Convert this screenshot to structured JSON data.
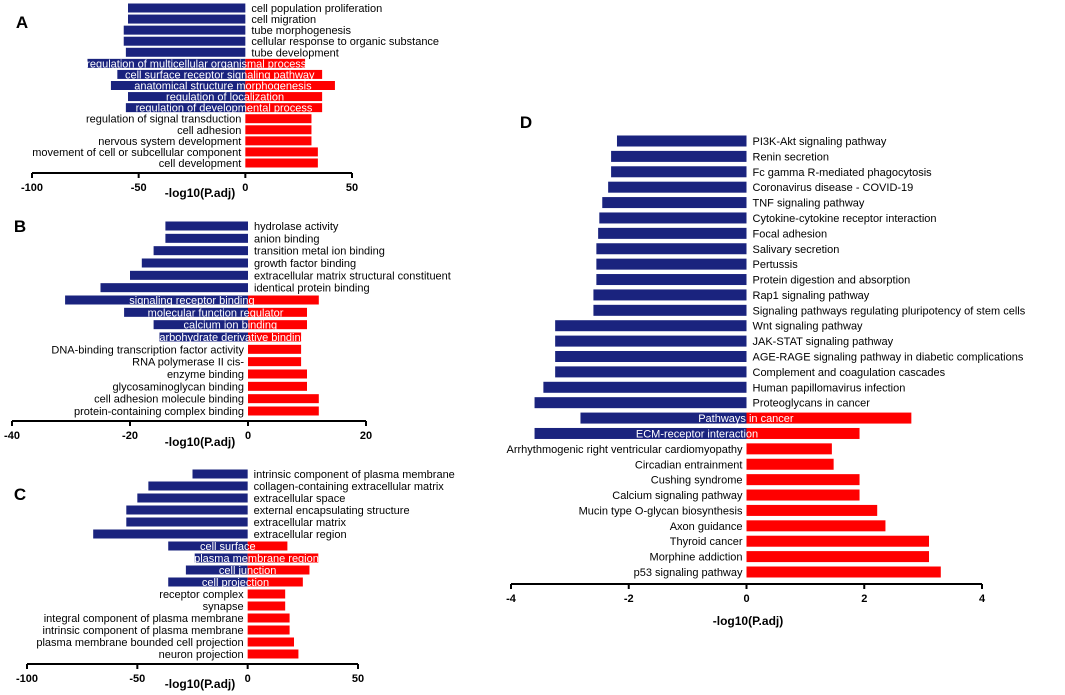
{
  "colors": {
    "negative": "#1a237e",
    "positive": "#ff0000"
  },
  "chart_data": [
    {
      "panel": "A",
      "type": "bar",
      "orientation": "horizontal",
      "xlabel": "-log10(P.adj)",
      "xlim": [
        -100,
        50
      ],
      "xticks": [
        -100,
        -50,
        0,
        50
      ],
      "categories": [
        "cell population proliferation",
        "cell migration",
        "tube morphogenesis",
        "cellular response to organic substance",
        "tube development",
        "regulation of multicellular organismal process",
        "cell surface receptor signaling pathway",
        "anatomical structure morphogenesis",
        "regulation of localization",
        "regulation of developmental process",
        "regulation of signal transduction",
        "cell adhesion",
        "nervous system development",
        "movement of cell or subcellular component",
        "cell development"
      ],
      "series": [
        {
          "name": "down",
          "values": [
            -55,
            -55,
            -57,
            -57,
            -56,
            -74,
            -60,
            -63,
            -55,
            -56,
            0,
            0,
            0,
            0,
            0
          ]
        },
        {
          "name": "up",
          "values": [
            0,
            0,
            0,
            0,
            0,
            28,
            36,
            42,
            36,
            36,
            31,
            31,
            31,
            34,
            34
          ]
        }
      ]
    },
    {
      "panel": "B",
      "type": "bar",
      "orientation": "horizontal",
      "xlabel": "-log10(P.adj)",
      "xlim": [
        -40,
        20
      ],
      "xticks": [
        -40,
        -20,
        0,
        20
      ],
      "categories": [
        "hydrolase activity",
        "anion binding",
        "transition metal ion binding",
        "growth factor binding",
        "extracellular matrix structural constituent",
        "identical protein binding",
        "signaling receptor binding",
        "molecular function regulator",
        "calcium ion binding",
        "carbohydrate derivative binding",
        "DNA-binding transcription factor activity",
        "RNA polymerase II cis-",
        "enzyme binding",
        "glycosaminoglycan binding",
        "cell adhesion molecule binding",
        "protein-containing complex binding"
      ],
      "series": [
        {
          "name": "down",
          "values": [
            -14,
            -14,
            -16,
            -18,
            -20,
            -25,
            -31,
            -21,
            -16,
            -15,
            0,
            0,
            0,
            0,
            0,
            0
          ]
        },
        {
          "name": "up",
          "values": [
            0,
            0,
            0,
            0,
            0,
            0,
            12,
            10,
            10,
            9,
            9,
            9,
            10,
            10,
            12,
            12
          ]
        }
      ]
    },
    {
      "panel": "C",
      "type": "bar",
      "orientation": "horizontal",
      "xlabel": "-log10(P.adj)",
      "xlim": [
        -100,
        50
      ],
      "xticks": [
        -100,
        -50,
        0,
        50
      ],
      "categories": [
        "intrinsic component of plasma membrane",
        "collagen-containing extracellular matrix",
        "extracellular space",
        "external encapsulating structure",
        "extracellular matrix",
        "extracellular region",
        "cell surface",
        "plasma membrane region",
        "cell junction",
        "cell projection",
        "receptor complex",
        "synapse",
        "integral component of plasma membrane",
        "intrinsic component of plasma membrane",
        "plasma membrane bounded cell projection",
        "neuron projection"
      ],
      "series": [
        {
          "name": "down",
          "values": [
            -25,
            -45,
            -50,
            -55,
            -55,
            -70,
            -36,
            -24,
            -28,
            -36,
            0,
            0,
            0,
            0,
            0,
            0
          ]
        },
        {
          "name": "up",
          "values": [
            0,
            0,
            0,
            0,
            0,
            0,
            18,
            32,
            28,
            25,
            17,
            17,
            19,
            19,
            21,
            23
          ]
        }
      ]
    },
    {
      "panel": "D",
      "type": "bar",
      "orientation": "horizontal",
      "xlabel": "-log10(P.adj)",
      "xlim": [
        -4,
        4
      ],
      "xticks": [
        -4,
        -2,
        0,
        2,
        4
      ],
      "categories": [
        "PI3K-Akt signaling pathway",
        "Renin secretion",
        "Fc gamma R-mediated phagocytosis",
        "Coronavirus disease - COVID-19",
        "TNF signaling pathway",
        "Cytokine-cytokine receptor interaction",
        "Focal adhesion",
        "Salivary secretion",
        "Pertussis",
        "Protein digestion and absorption",
        "Rap1 signaling pathway",
        "Signaling pathways regulating pluripotency of stem cells",
        "Wnt signaling pathway",
        "JAK-STAT signaling pathway",
        "AGE-RAGE signaling pathway in diabetic complications",
        "Complement and coagulation cascades",
        "Human papillomavirus infection",
        "Proteoglycans in cancer",
        "Pathways in cancer",
        "ECM-receptor interaction",
        "Arrhythmogenic right ventricular cardiomyopathy",
        "Circadian entrainment",
        "Cushing syndrome",
        "Calcium signaling pathway",
        "Mucin type O-glycan biosynthesis",
        "Axon guidance",
        "Thyroid cancer",
        "Morphine addiction",
        "p53 signaling pathway"
      ],
      "series": [
        {
          "name": "down",
          "values": [
            -2.2,
            -2.3,
            -2.3,
            -2.35,
            -2.45,
            -2.5,
            -2.52,
            -2.55,
            -2.55,
            -2.55,
            -2.6,
            -2.6,
            -3.25,
            -3.25,
            -3.25,
            -3.25,
            -3.45,
            -3.6,
            -2.82,
            -3.6,
            0,
            0,
            0,
            0,
            0,
            0,
            0,
            0,
            0
          ]
        },
        {
          "name": "up",
          "values": [
            0,
            0,
            0,
            0,
            0,
            0,
            0,
            0,
            0,
            0,
            0,
            0,
            0,
            0,
            0,
            0,
            0,
            0,
            2.8,
            1.92,
            1.45,
            1.48,
            1.92,
            1.92,
            2.22,
            2.36,
            3.1,
            3.1,
            3.3
          ]
        }
      ]
    }
  ]
}
